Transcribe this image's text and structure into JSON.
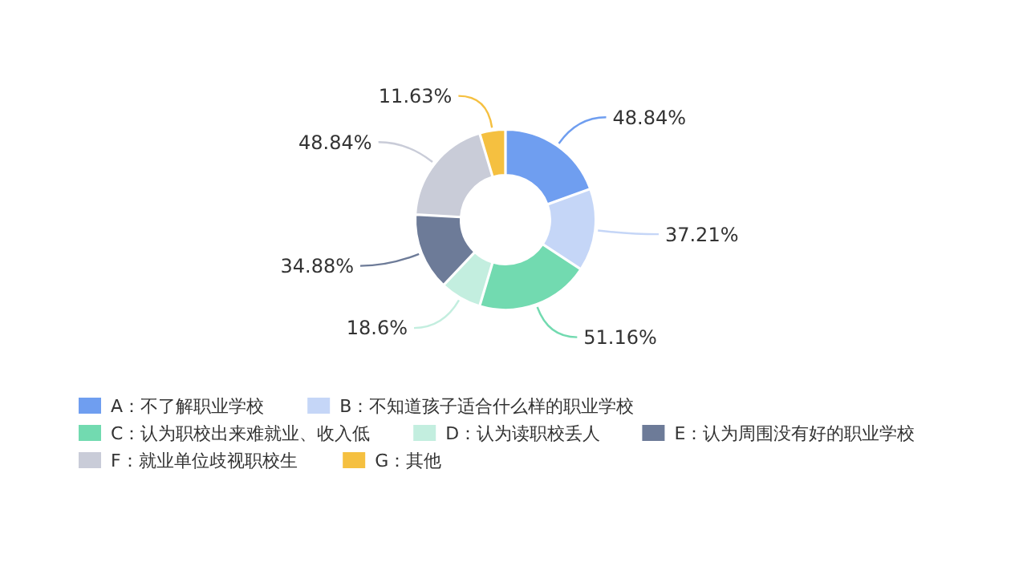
{
  "chart_data": {
    "type": "donut",
    "categories": [
      "A：不了解职业学校",
      "B：不知道孩子适合什么样的职业学校",
      "C：认为职校出来难就业、收入低",
      "D：认为读职校丢人",
      "E：认为周围没有好的职业学校",
      "F：就业单位歧视职校生",
      "G：其他"
    ],
    "values": [
      48.84,
      37.21,
      51.16,
      18.6,
      34.88,
      48.84,
      11.63
    ],
    "value_labels": [
      "48.84%",
      "37.21%",
      "51.16%",
      "18.6%",
      "34.88%",
      "48.84%",
      "11.63%"
    ],
    "colors": [
      "#6f9ef0",
      "#c5d6f7",
      "#72dab0",
      "#c3eedf",
      "#6d7b98",
      "#c9ccd8",
      "#f5c040"
    ],
    "legend": "bottom left"
  }
}
